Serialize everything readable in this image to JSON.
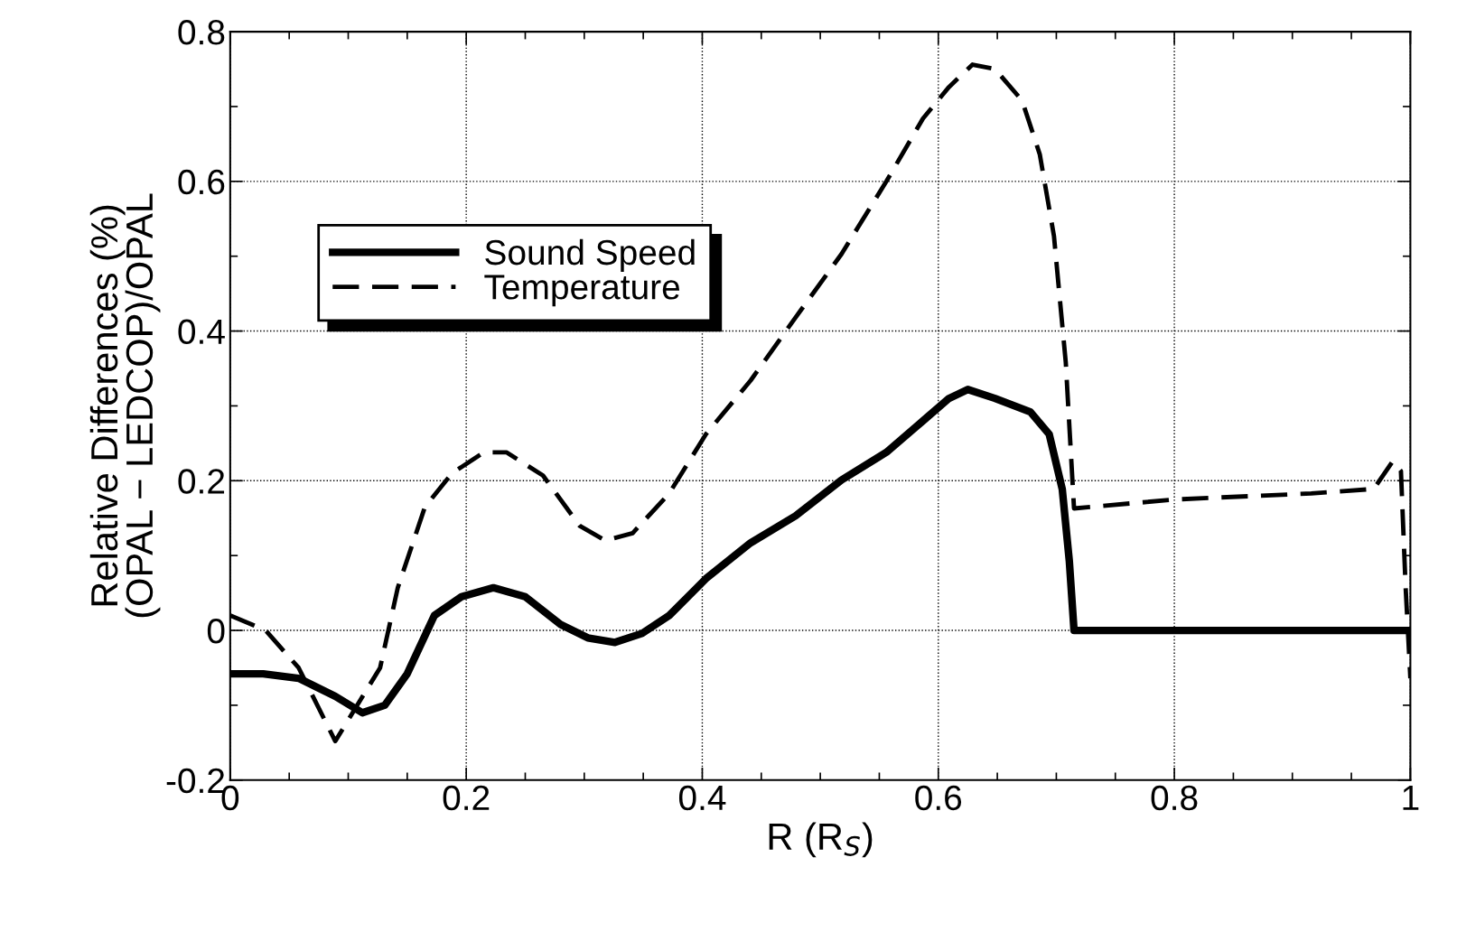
{
  "chart_data": {
    "type": "line",
    "xlabel": "R (R$_{S}$)",
    "ylabel": "Relative Differences (%)\n(OPAL − LEDCOP)/OPAL",
    "xlim": [
      0,
      1
    ],
    "ylim": [
      -0.2,
      0.8
    ],
    "xticks": [
      0,
      0.2,
      0.4,
      0.6,
      0.8,
      1
    ],
    "yticks": [
      -0.2,
      0,
      0.2,
      0.4,
      0.6,
      0.8
    ],
    "grid": true,
    "legend": "top left",
    "marker": "none",
    "series": [
      {
        "name": "Sound Speed",
        "color": "#000000",
        "line_style": "solid",
        "x": [
          0,
          0.028,
          0.058,
          0.089,
          0.112,
          0.131,
          0.15,
          0.173,
          0.196,
          0.223,
          0.25,
          0.28,
          0.303,
          0.326,
          0.349,
          0.372,
          0.403,
          0.441,
          0.479,
          0.518,
          0.556,
          0.587,
          0.609,
          0.625,
          0.648,
          0.678,
          0.694,
          0.705,
          0.711,
          0.715,
          0.992,
          1.0
        ],
        "values": [
          -0.058,
          -0.058,
          -0.064,
          -0.088,
          -0.11,
          -0.1,
          -0.058,
          0.02,
          0.045,
          0.057,
          0.045,
          0.008,
          -0.01,
          -0.016,
          -0.004,
          0.02,
          0.069,
          0.117,
          0.153,
          0.201,
          0.238,
          0.28,
          0.31,
          0.322,
          0.31,
          0.292,
          0.262,
          0.189,
          0.093,
          0,
          0,
          0
        ]
      },
      {
        "name": "Temperature",
        "color": "#000000",
        "line_style": "dashed",
        "x": [
          0,
          0.03,
          0.058,
          0.089,
          0.127,
          0.142,
          0.165,
          0.188,
          0.215,
          0.234,
          0.265,
          0.296,
          0.318,
          0.341,
          0.372,
          0.403,
          0.441,
          0.479,
          0.518,
          0.556,
          0.587,
          0.609,
          0.629,
          0.648,
          0.671,
          0.686,
          0.698,
          0.708,
          0.715,
          0.801,
          0.916,
          0.969,
          0.985,
          0.992,
          0.996,
          1.0
        ],
        "values": [
          0.02,
          0.0,
          -0.05,
          -0.148,
          -0.05,
          0.057,
          0.165,
          0.21,
          0.238,
          0.238,
          0.207,
          0.14,
          0.12,
          0.13,
          0.183,
          0.262,
          0.334,
          0.418,
          0.503,
          0.6,
          0.684,
          0.726,
          0.756,
          0.75,
          0.708,
          0.636,
          0.527,
          0.358,
          0.163,
          0.175,
          0.183,
          0.189,
          0.226,
          0.213,
          0.057,
          -0.064
        ]
      }
    ]
  }
}
